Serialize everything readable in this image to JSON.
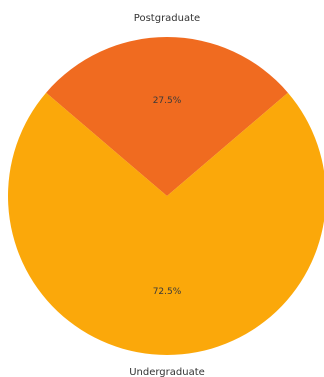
{
  "chart_data": {
    "type": "pie",
    "title": "",
    "slices": [
      {
        "label": "Postgraduate",
        "value": 27.5,
        "display": "27.5%",
        "color": "#f06b20"
      },
      {
        "label": "Undergraduate",
        "value": 72.5,
        "display": "72.5%",
        "color": "#fba80a"
      }
    ],
    "start_angle_deg": -49.5,
    "direction": "clockwise",
    "legend": "none"
  }
}
